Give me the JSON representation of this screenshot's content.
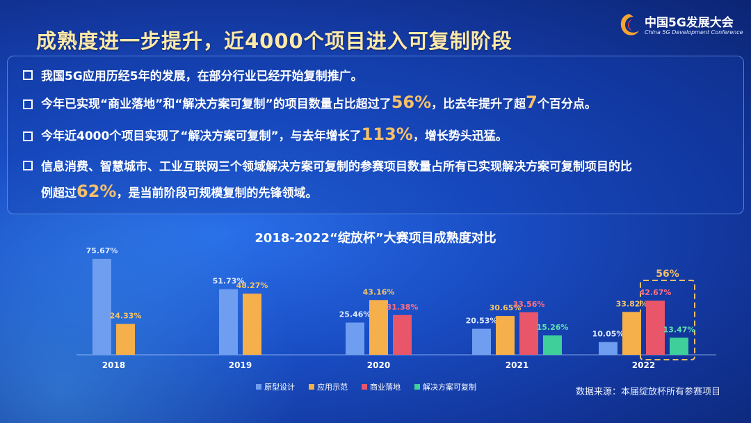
{
  "logo": {
    "cn": "中国5G发展大会",
    "en": "China 5G Development Conference"
  },
  "headline": "成熟度进一步提升，近4000个项目进入可复制阶段",
  "bullets": {
    "b1": "我国5G应用历经5年的发展，在部分行业已经开始复制推广。",
    "b2": {
      "pre": "今年已实现“商业落地”和“解决方案可复制”的项目数量占比超过了",
      "hl1": "56%",
      "mid": "，比去年提升了超",
      "hl2": "7",
      "post": "个百分点。"
    },
    "b3": {
      "pre": "今年近4000个项目实现了“解决方案可复制”，与去年增长了",
      "hl": "113%",
      "post": "，增长势头迅猛。"
    },
    "b4": {
      "line1": "信息消费、智慧城市、工业互联网三个领域解决方案可复制的参赛项目数量占所有已实现解决方案可复制项目的比",
      "pre": "例超过",
      "hl": "62%",
      "post": "，是当前阶段可规模复制的先锋领域。"
    }
  },
  "source": "数据来源：本届绽放杯所有参赛项目",
  "colors": {
    "prototype": "#6f9df0",
    "demo": "#f5b04c",
    "commercial": "#e9566a",
    "replicable": "#3fcf9a",
    "highlight": "#f6c06a",
    "labels": [
      "#dde8ff",
      "#f5c56a",
      "#ff6f84",
      "#5fe0b0"
    ]
  },
  "chart_data": {
    "type": "bar",
    "title": "2018-2022“绽放杯”大赛项目成熟度对比",
    "categories": [
      "2018",
      "2019",
      "2020",
      "2021",
      "2022"
    ],
    "series": [
      {
        "name": "原型设计",
        "values": [
          75.67,
          51.73,
          25.46,
          20.53,
          10.05
        ],
        "labels": [
          "75.67%",
          "51.73%",
          "25.46%",
          "20.53%",
          "10.05%"
        ]
      },
      {
        "name": "应用示范",
        "values": [
          24.33,
          48.27,
          43.16,
          30.65,
          33.82
        ],
        "labels": [
          "24.33%",
          "48.27%",
          "43.16%",
          "30.65%",
          "33.82%"
        ]
      },
      {
        "name": "商业落地",
        "values": [
          null,
          null,
          31.38,
          33.56,
          42.67
        ],
        "labels": [
          "",
          "",
          "31.38%",
          "33.56%",
          "42.67%"
        ]
      },
      {
        "name": "解决方案可复制",
        "values": [
          null,
          null,
          null,
          15.26,
          13.47
        ],
        "labels": [
          "",
          "",
          "",
          "15.26%",
          "13.47%"
        ]
      }
    ],
    "ylim": [
      0,
      80
    ],
    "legend_position": "bottom-center",
    "annotation": "56%"
  }
}
